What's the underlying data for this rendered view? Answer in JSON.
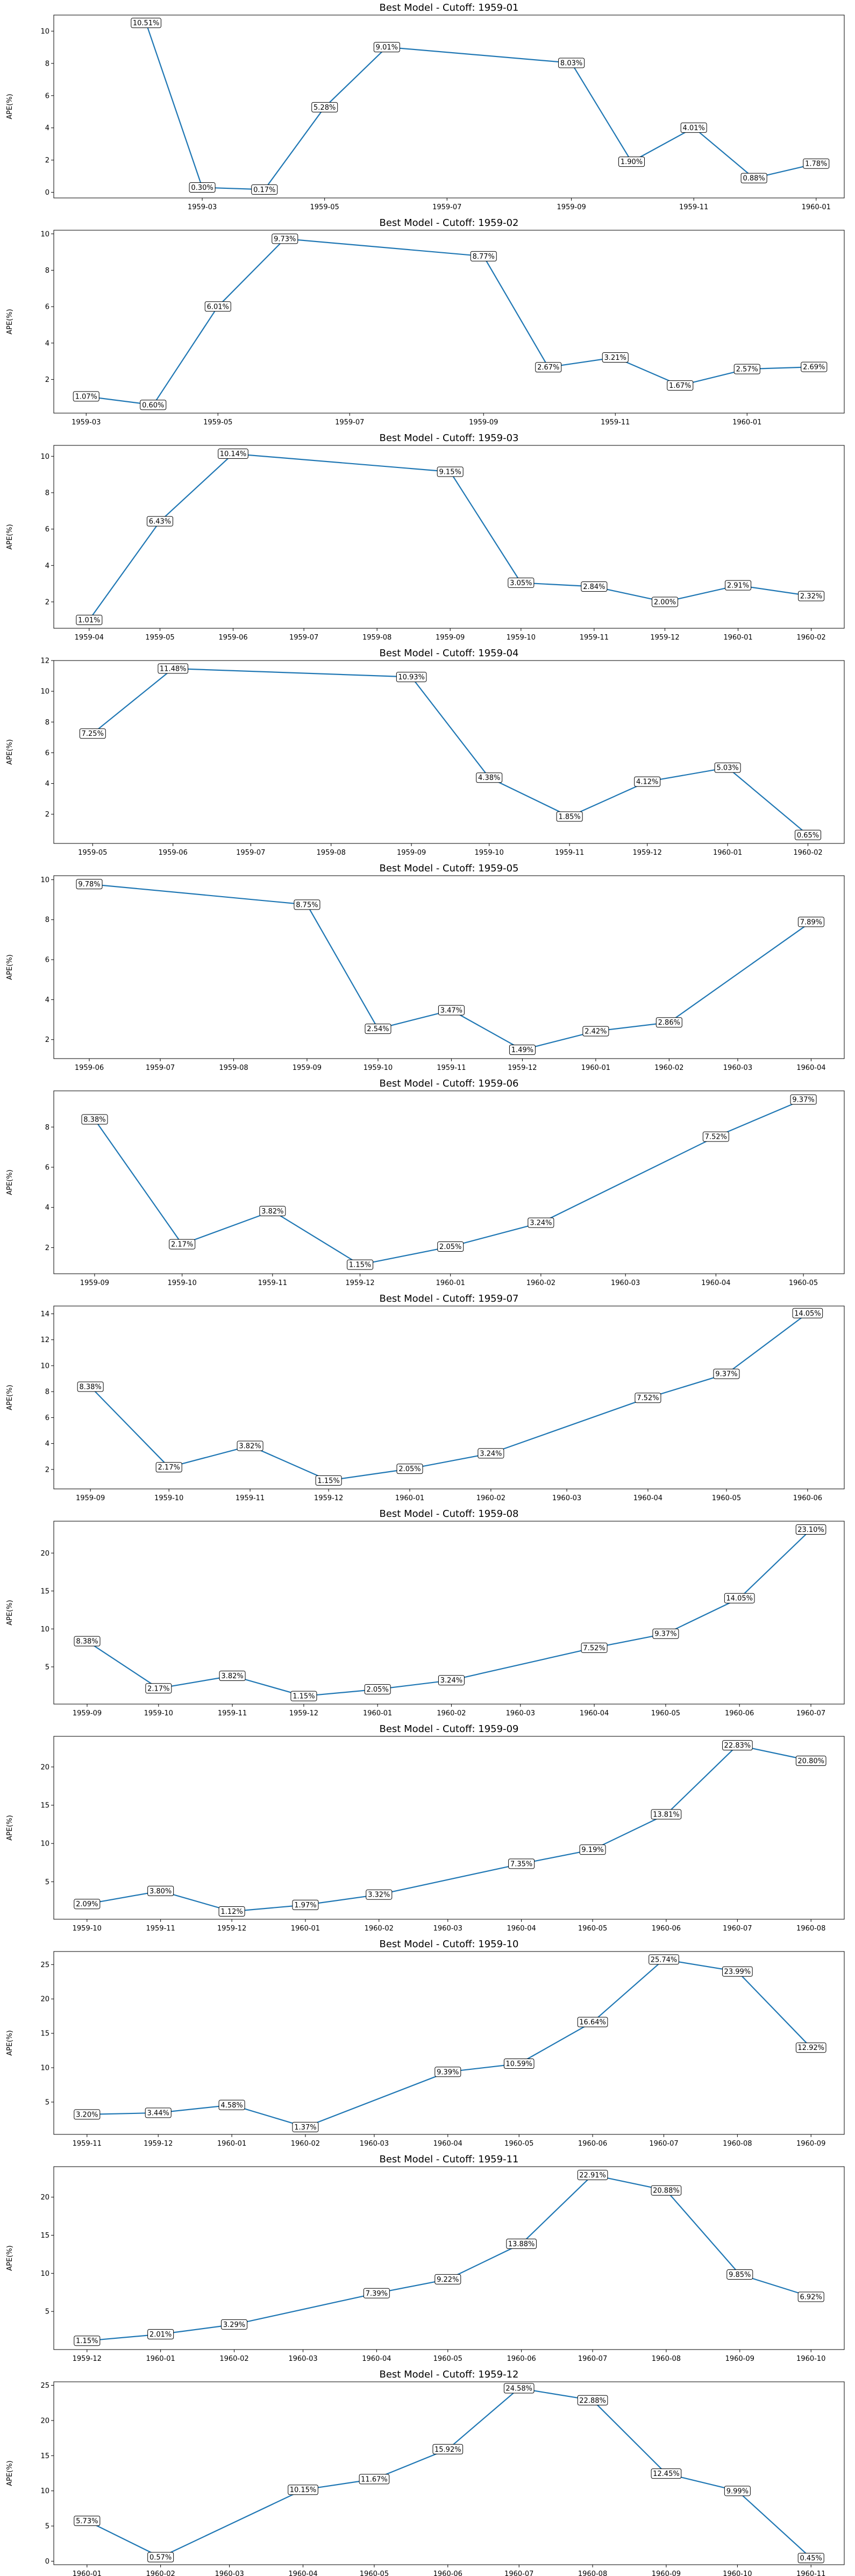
{
  "style": {
    "line_color": "#1f77b4",
    "frame_color": "#000000",
    "label_box_fill": "#ffffff"
  },
  "chart_data": [
    {
      "type": "line",
      "title": "Best Model - Cutoff: 1959-01",
      "ylabel": "APE(%)",
      "ylim": [
        -0.35,
        11.0
      ],
      "yticks": [
        0,
        2,
        4,
        6,
        8,
        10
      ],
      "xlim": [
        "1958-12-17",
        "1960-01-15"
      ],
      "xticks": [
        "1959-03",
        "1959-05",
        "1959-07",
        "1959-09",
        "1959-11",
        "1960-01"
      ],
      "x": [
        "1959-02",
        "1959-03",
        "1959-04",
        "1959-05",
        "1959-06",
        "1959-09",
        "1959-10",
        "1959-11",
        "1959-12",
        "1960-01"
      ],
      "values": [
        10.51,
        0.3,
        0.17,
        5.28,
        9.01,
        8.03,
        1.9,
        4.01,
        0.88,
        1.78
      ],
      "labels": [
        "10.51%",
        "0.30%",
        "0.17%",
        "5.28%",
        "9.01%",
        "8.03%",
        "1.90%",
        "4.01%",
        "0.88%",
        "1.78%"
      ]
    },
    {
      "type": "line",
      "title": "Best Model - Cutoff: 1959-02",
      "ylabel": "APE(%)",
      "ylim": [
        0.15,
        10.2
      ],
      "yticks": [
        2,
        4,
        6,
        8,
        10
      ],
      "xlim": [
        "1959-02-14",
        "1960-02-15"
      ],
      "xticks": [
        "1959-03",
        "1959-05",
        "1959-07",
        "1959-09",
        "1959-11",
        "1960-01"
      ],
      "x": [
        "1959-03",
        "1959-04",
        "1959-05",
        "1959-06",
        "1959-09",
        "1959-10",
        "1959-11",
        "1959-12",
        "1960-01",
        "1960-02"
      ],
      "values": [
        1.07,
        0.6,
        6.01,
        9.73,
        8.77,
        2.67,
        3.21,
        1.67,
        2.57,
        2.69
      ],
      "labels": [
        "1.07%",
        "0.60%",
        "6.01%",
        "9.73%",
        "8.77%",
        "2.67%",
        "3.21%",
        "1.67%",
        "2.57%",
        "2.69%"
      ]
    },
    {
      "type": "line",
      "title": "Best Model - Cutoff: 1959-03",
      "ylabel": "APE(%)",
      "ylim": [
        0.55,
        10.6
      ],
      "yticks": [
        2,
        4,
        6,
        8,
        10
      ],
      "xlim": [
        "1959-03-17",
        "1960-02-15"
      ],
      "xticks": [
        "1959-04",
        "1959-05",
        "1959-06",
        "1959-07",
        "1959-08",
        "1959-09",
        "1959-10",
        "1959-11",
        "1959-12",
        "1960-01",
        "1960-02"
      ],
      "x": [
        "1959-04",
        "1959-05",
        "1959-06",
        "1959-09",
        "1959-10",
        "1959-11",
        "1959-12",
        "1960-01",
        "1960-02"
      ],
      "values": [
        1.01,
        6.43,
        10.14,
        9.15,
        3.05,
        2.84,
        2.0,
        2.91,
        2.32
      ],
      "labels": [
        "1.01%",
        "6.43%",
        "10.14%",
        "9.15%",
        "3.05%",
        "2.84%",
        "2.00%",
        "2.91%",
        "2.32%"
      ]
    },
    {
      "type": "line",
      "title": "Best Model - Cutoff: 1959-04",
      "ylabel": "APE(%)",
      "ylim": [
        0.1,
        12.0
      ],
      "yticks": [
        2,
        4,
        6,
        8,
        10,
        12
      ],
      "xlim": [
        "1959-04-16",
        "1960-02-15"
      ],
      "xticks": [
        "1959-05",
        "1959-06",
        "1959-07",
        "1959-08",
        "1959-09",
        "1959-10",
        "1959-11",
        "1959-12",
        "1960-01",
        "1960-02"
      ],
      "x": [
        "1959-05",
        "1959-06",
        "1959-09",
        "1959-10",
        "1959-11",
        "1959-12",
        "1960-01",
        "1960-02"
      ],
      "values": [
        7.25,
        11.48,
        10.93,
        4.38,
        1.85,
        4.12,
        5.03,
        0.65
      ],
      "labels": [
        "7.25%",
        "11.48%",
        "10.93%",
        "4.38%",
        "1.85%",
        "4.12%",
        "5.03%",
        "0.65%"
      ]
    },
    {
      "type": "line",
      "title": "Best Model - Cutoff: 1959-05",
      "ylabel": "APE(%)",
      "ylim": [
        1.05,
        10.2
      ],
      "yticks": [
        2,
        4,
        6,
        8,
        10
      ],
      "xlim": [
        "1959-05-17",
        "1960-04-15"
      ],
      "xticks": [
        "1959-06",
        "1959-07",
        "1959-08",
        "1959-09",
        "1959-10",
        "1959-11",
        "1959-12",
        "1960-01",
        "1960-02",
        "1960-03",
        "1960-04"
      ],
      "x": [
        "1959-06",
        "1959-09",
        "1959-10",
        "1959-11",
        "1959-12",
        "1960-01",
        "1960-02",
        "1960-04"
      ],
      "values": [
        9.78,
        8.75,
        2.54,
        3.47,
        1.49,
        2.42,
        2.86,
        7.89
      ],
      "labels": [
        "9.78%",
        "8.75%",
        "2.54%",
        "3.47%",
        "1.49%",
        "2.42%",
        "2.86%",
        "7.89%"
      ]
    },
    {
      "type": "line",
      "title": "Best Model - Cutoff: 1959-06",
      "ylabel": "APE(%)",
      "ylim": [
        0.7,
        9.8
      ],
      "yticks": [
        2,
        4,
        6,
        8
      ],
      "xlim": [
        "1959-08-18",
        "1960-05-15"
      ],
      "xticks": [
        "1959-09",
        "1959-10",
        "1959-11",
        "1959-12",
        "1960-01",
        "1960-02",
        "1960-03",
        "1960-04",
        "1960-05"
      ],
      "x": [
        "1959-09",
        "1959-10",
        "1959-11",
        "1959-12",
        "1960-01",
        "1960-02",
        "1960-04",
        "1960-05"
      ],
      "values": [
        8.38,
        2.17,
        3.82,
        1.15,
        2.05,
        3.24,
        7.52,
        9.37
      ],
      "labels": [
        "8.38%",
        "2.17%",
        "3.82%",
        "1.15%",
        "2.05%",
        "3.24%",
        "7.52%",
        "9.37%"
      ]
    },
    {
      "type": "line",
      "title": "Best Model - Cutoff: 1959-07",
      "ylabel": "APE(%)",
      "ylim": [
        0.5,
        14.6
      ],
      "yticks": [
        2,
        4,
        6,
        8,
        10,
        12,
        14
      ],
      "xlim": [
        "1959-08-18",
        "1960-06-15"
      ],
      "xticks": [
        "1959-09",
        "1959-10",
        "1959-11",
        "1959-12",
        "1960-01",
        "1960-02",
        "1960-03",
        "1960-04",
        "1960-05",
        "1960-06"
      ],
      "x": [
        "1959-09",
        "1959-10",
        "1959-11",
        "1959-12",
        "1960-01",
        "1960-02",
        "1960-04",
        "1960-05",
        "1960-06"
      ],
      "values": [
        8.38,
        2.17,
        3.82,
        1.15,
        2.05,
        3.24,
        7.52,
        9.37,
        14.05
      ],
      "labels": [
        "8.38%",
        "2.17%",
        "3.82%",
        "1.15%",
        "2.05%",
        "3.24%",
        "7.52%",
        "9.37%",
        "14.05%"
      ]
    },
    {
      "type": "line",
      "title": "Best Model - Cutoff: 1959-08",
      "ylabel": "APE(%)",
      "ylim": [
        0.1,
        24.2
      ],
      "yticks": [
        5,
        10,
        15,
        20
      ],
      "xlim": [
        "1959-08-18",
        "1960-07-15"
      ],
      "xticks": [
        "1959-09",
        "1959-10",
        "1959-11",
        "1959-12",
        "1960-01",
        "1960-02",
        "1960-03",
        "1960-04",
        "1960-05",
        "1960-06",
        "1960-07"
      ],
      "x": [
        "1959-09",
        "1959-10",
        "1959-11",
        "1959-12",
        "1960-01",
        "1960-02",
        "1960-04",
        "1960-05",
        "1960-06",
        "1960-07"
      ],
      "values": [
        8.38,
        2.17,
        3.82,
        1.15,
        2.05,
        3.24,
        7.52,
        9.37,
        14.05,
        23.1
      ],
      "labels": [
        "8.38%",
        "2.17%",
        "3.82%",
        "1.15%",
        "2.05%",
        "3.24%",
        "7.52%",
        "9.37%",
        "14.05%",
        "23.10%"
      ]
    },
    {
      "type": "line",
      "title": "Best Model - Cutoff: 1959-09",
      "ylabel": "APE(%)",
      "ylim": [
        0.1,
        24.0
      ],
      "yticks": [
        5,
        10,
        15,
        20
      ],
      "xlim": [
        "1959-09-17",
        "1960-08-15"
      ],
      "xticks": [
        "1959-10",
        "1959-11",
        "1959-12",
        "1960-01",
        "1960-02",
        "1960-03",
        "1960-04",
        "1960-05",
        "1960-06",
        "1960-07",
        "1960-08"
      ],
      "x": [
        "1959-10",
        "1959-11",
        "1959-12",
        "1960-01",
        "1960-02",
        "1960-04",
        "1960-05",
        "1960-06",
        "1960-07",
        "1960-08"
      ],
      "values": [
        2.09,
        3.8,
        1.12,
        1.97,
        3.32,
        7.35,
        9.19,
        13.81,
        22.83,
        20.8
      ],
      "labels": [
        "2.09%",
        "3.80%",
        "1.12%",
        "1.97%",
        "3.32%",
        "7.35%",
        "9.19%",
        "13.81%",
        "22.83%",
        "20.80%"
      ]
    },
    {
      "type": "line",
      "title": "Best Model - Cutoff: 1959-10",
      "ylabel": "APE(%)",
      "ylim": [
        0.3,
        26.9
      ],
      "yticks": [
        5,
        10,
        15,
        20,
        25
      ],
      "xlim": [
        "1959-10-18",
        "1960-09-15"
      ],
      "xticks": [
        "1959-11",
        "1959-12",
        "1960-01",
        "1960-02",
        "1960-03",
        "1960-04",
        "1960-05",
        "1960-06",
        "1960-07",
        "1960-08",
        "1960-09"
      ],
      "x": [
        "1959-11",
        "1959-12",
        "1960-01",
        "1960-02",
        "1960-04",
        "1960-05",
        "1960-06",
        "1960-07",
        "1960-08",
        "1960-09"
      ],
      "values": [
        3.2,
        3.44,
        4.58,
        1.37,
        9.39,
        10.59,
        16.64,
        25.74,
        23.99,
        12.92
      ],
      "labels": [
        "3.20%",
        "3.44%",
        "4.58%",
        "1.37%",
        "9.39%",
        "10.59%",
        "16.64%",
        "25.74%",
        "23.99%",
        "12.92%"
      ]
    },
    {
      "type": "line",
      "title": "Best Model - Cutoff: 1959-11",
      "ylabel": "APE(%)",
      "ylim": [
        0.0,
        24.0
      ],
      "yticks": [
        5,
        10,
        15,
        20
      ],
      "xlim": [
        "1959-11-17",
        "1960-10-15"
      ],
      "xticks": [
        "1959-12",
        "1960-01",
        "1960-02",
        "1960-03",
        "1960-04",
        "1960-05",
        "1960-06",
        "1960-07",
        "1960-08",
        "1960-09",
        "1960-10"
      ],
      "x": [
        "1959-12",
        "1960-01",
        "1960-02",
        "1960-04",
        "1960-05",
        "1960-06",
        "1960-07",
        "1960-08",
        "1960-09",
        "1960-10"
      ],
      "values": [
        1.15,
        2.01,
        3.29,
        7.39,
        9.22,
        13.88,
        22.91,
        20.88,
        9.85,
        6.92
      ],
      "labels": [
        "1.15%",
        "2.01%",
        "3.29%",
        "7.39%",
        "9.22%",
        "13.88%",
        "22.91%",
        "20.88%",
        "9.85%",
        "6.92%"
      ]
    },
    {
      "type": "line",
      "title": "Best Model - Cutoff: 1959-12",
      "ylabel": "APE(%)",
      "ylim": [
        -0.5,
        25.5
      ],
      "yticks": [
        0,
        5,
        10,
        15,
        20,
        25
      ],
      "xlim": [
        "1959-12-18",
        "1960-11-15"
      ],
      "xticks": [
        "1960-01",
        "1960-02",
        "1960-03",
        "1960-04",
        "1960-05",
        "1960-06",
        "1960-07",
        "1960-08",
        "1960-09",
        "1960-10",
        "1960-11"
      ],
      "x": [
        "1960-01",
        "1960-02",
        "1960-04",
        "1960-05",
        "1960-06",
        "1960-07",
        "1960-08",
        "1960-09",
        "1960-10",
        "1960-11"
      ],
      "values": [
        5.73,
        0.57,
        10.15,
        11.67,
        15.92,
        24.58,
        22.88,
        12.45,
        9.99,
        0.45
      ],
      "labels": [
        "5.73%",
        "0.57%",
        "10.15%",
        "11.67%",
        "15.92%",
        "24.58%",
        "22.88%",
        "12.45%",
        "9.99%",
        "0.45%"
      ]
    }
  ]
}
